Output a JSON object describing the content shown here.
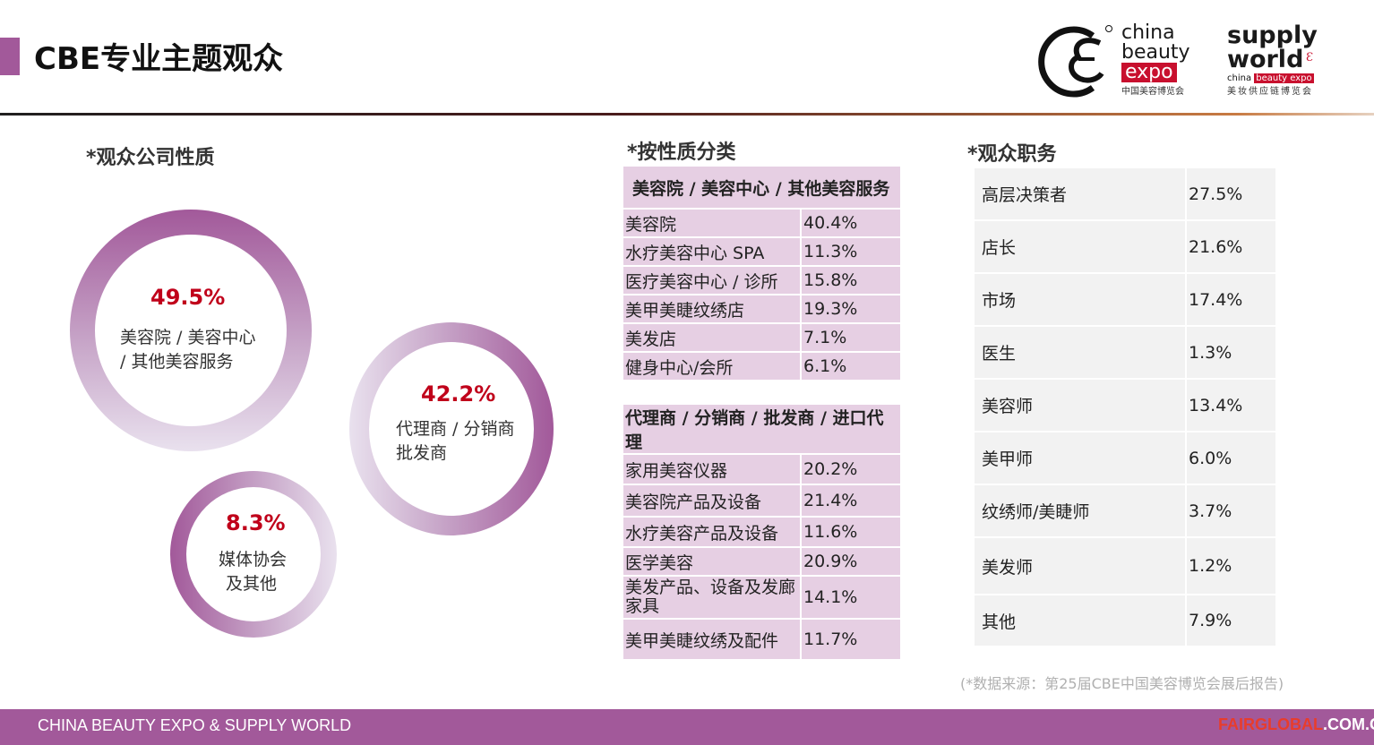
{
  "header": {
    "title": "CBE专业主题观众"
  },
  "logos": {
    "cbe": {
      "line1": "china",
      "line2": "beauty",
      "line3": "expo",
      "sub": "中国美容博览会"
    },
    "supply_world": {
      "line1": "supply",
      "line2": "world",
      "small_a": "china",
      "small_b": "beauty expo",
      "sub": "美妆供应链博览会"
    }
  },
  "company_nature": {
    "heading": "*观众公司性质",
    "circles": [
      {
        "pct": "49.5%",
        "line1": "美容院 / 美容中心",
        "line2": "/ 其他美容服务"
      },
      {
        "pct": "42.2%",
        "line1": "代理商 / 分销商",
        "line2": "批发商"
      },
      {
        "pct": "8.3%",
        "line1": "媒体协会",
        "line2": "及其他"
      }
    ]
  },
  "by_type": {
    "heading": "*按性质分类",
    "group1": {
      "header": "美容院 / 美容中心 / 其他美容服务",
      "rows": [
        {
          "name": "美容院",
          "value": "40.4%"
        },
        {
          "name": "水疗美容中心 SPA",
          "value": "11.3%"
        },
        {
          "name": "医疗美容中心 / 诊所",
          "value": "15.8%"
        },
        {
          "name": "美甲美睫纹绣店",
          "value": "19.3%"
        },
        {
          "name": "美发店",
          "value": "7.1%"
        },
        {
          "name": "健身中心/会所",
          "value": "6.1%"
        }
      ]
    },
    "group2": {
      "header": "代理商 / 分销商 / 批发商 / 进口代理",
      "rows": [
        {
          "name": "家用美容仪器",
          "value": "20.2%"
        },
        {
          "name": "美容院产品及设备",
          "value": "21.4%"
        },
        {
          "name": "水疗美容产品及设备",
          "value": "11.6%"
        },
        {
          "name": "医学美容",
          "value": "20.9%"
        },
        {
          "name": "美发产品、设备及发廊家具",
          "value": "14.1%"
        },
        {
          "name": "美甲美睫纹绣及配件",
          "value": "11.7%"
        }
      ]
    }
  },
  "job_titles": {
    "heading": "*观众职务",
    "rows": [
      {
        "name": "高层决策者",
        "value": "27.5%"
      },
      {
        "name": "店长",
        "value": "21.6%"
      },
      {
        "name": "市场",
        "value": "17.4%"
      },
      {
        "name": "医生",
        "value": "1.3%"
      },
      {
        "name": "美容师",
        "value": "13.4%"
      },
      {
        "name": "美甲师",
        "value": "6.0%"
      },
      {
        "name": "纹绣师/美睫师",
        "value": "3.7%"
      },
      {
        "name": "美发师",
        "value": "1.2%"
      },
      {
        "name": "其他",
        "value": "7.9%"
      }
    ]
  },
  "source": "(*数据来源：第25届CBE中国美容博览会展后报告)",
  "footer": {
    "left": "CHINA BEAUTY EXPO & SUPPLY  WORLD",
    "right_red": "FAIRGLOBAL",
    "right_white": ".COM.CN"
  },
  "colors": {
    "accent": "#a2599a",
    "highlight": "#c0001a",
    "table_fill": "#e6cfe3",
    "table_fill_right": "#f2f2f2"
  }
}
